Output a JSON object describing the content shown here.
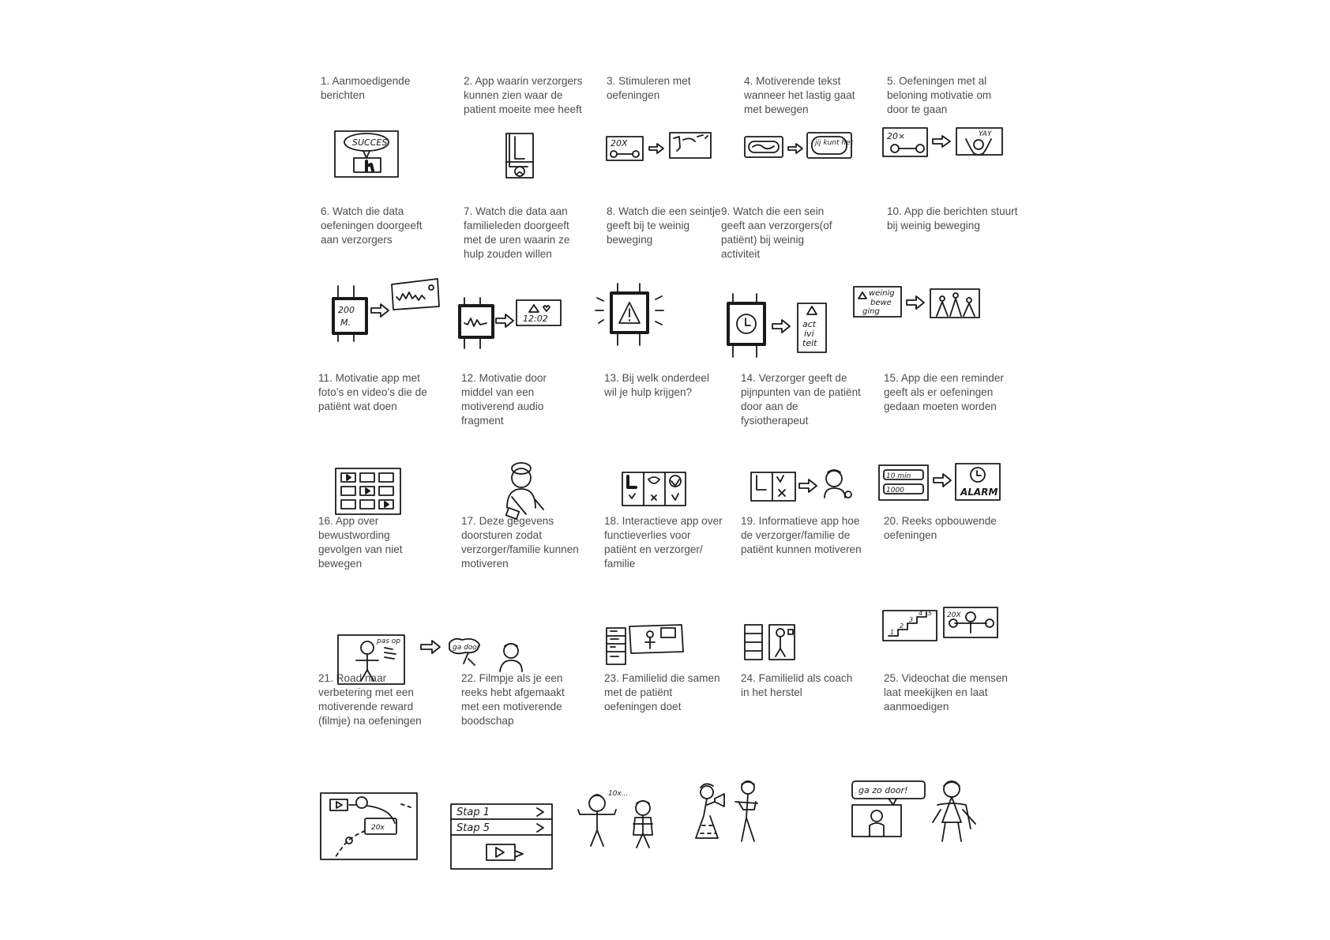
{
  "ideas": [
    {
      "number": "1",
      "caption": "1. Aanmoedigende berichten",
      "sketch_text": [
        "SUCCES"
      ]
    },
    {
      "number": "2",
      "caption": "2. App waarin verzorgers kunnen zien waar de patient moeite mee heeft",
      "sketch_text": []
    },
    {
      "number": "3",
      "caption": "3. Stimuleren met oefeningen",
      "sketch_text": [
        "20X"
      ]
    },
    {
      "number": "4",
      "caption": "4. Motiverende tekst wanneer het lastig gaat met bewegen",
      "sketch_text": [
        "jij kunt het"
      ]
    },
    {
      "number": "5",
      "caption": "5. Oefeningen met al beloning motivatie om door te gaan",
      "sketch_text": [
        "20×",
        "YAY"
      ]
    },
    {
      "number": "6",
      "caption": "6. Watch die data oefeningen doorgeeft aan verzorgers",
      "sketch_text": [
        "200",
        "M."
      ]
    },
    {
      "number": "7",
      "caption": "7. Watch die data aan familieleden doorgeeft met de uren waarin ze hulp zouden willen",
      "sketch_text": [
        "12:02"
      ]
    },
    {
      "number": "8",
      "caption": "8. Watch die een seintje geeft bij te weinig beweging",
      "sketch_text": []
    },
    {
      "number": "9",
      "caption": "9. Watch die een sein geeft aan verzorgers(of patiënt) bij weinig activiteit",
      "sketch_text": [
        "act",
        "ivi",
        "teit"
      ]
    },
    {
      "number": "10",
      "caption": "10. App die berichten stuurt bij weinig beweging",
      "sketch_text": [
        "weinig",
        "bewe",
        "ging"
      ]
    },
    {
      "number": "11",
      "caption": "11. Motivatie app met foto’s en video’s die de patiënt wat doen",
      "sketch_text": []
    },
    {
      "number": "12",
      "caption": "12. Motivatie door middel van een motiverend audio fragment",
      "sketch_text": []
    },
    {
      "number": "13",
      "caption": "13. Bij welk onderdeel wil je hulp krijgen?",
      "sketch_text": []
    },
    {
      "number": "14",
      "caption": "14. Verzorger geeft de pijnpunten van de patiënt door aan de fysiotherapeut",
      "sketch_text": []
    },
    {
      "number": "15",
      "caption": "15. App die een reminder geeft als er oefeningen gedaan moeten worden",
      "sketch_text": [
        "10 min",
        "1000",
        "ALARM"
      ]
    },
    {
      "number": "16",
      "caption": "16. App over bewustwording gevolgen van niet bewegen",
      "sketch_text": [
        "pas op"
      ]
    },
    {
      "number": "17",
      "caption": "17. Deze gegevens doorsturen zodat verzorger/familie kunnen motiveren",
      "sketch_text": [
        "ga door"
      ]
    },
    {
      "number": "18",
      "caption": "18. Interactieve app over functieverlies voor patiënt en verzorger/ familie",
      "sketch_text": []
    },
    {
      "number": "19",
      "caption": "19. Informatieve app hoe de verzorger/familie de patiënt kunnen motiveren",
      "sketch_text": []
    },
    {
      "number": "20",
      "caption": "20. Reeks opbouwende oefeningen",
      "sketch_text": [
        "1",
        "2",
        "3",
        "4",
        "5",
        "20X"
      ]
    },
    {
      "number": "21",
      "caption": "21. Road naar verbetering met een motiverende reward (filmje) na oefeningen",
      "sketch_text": [
        "20x"
      ]
    },
    {
      "number": "22",
      "caption": "22. Filmpje als je een reeks hebt afgemaakt met een motiverende boodschap",
      "sketch_text": [
        "Stap 1",
        "Stap 5"
      ]
    },
    {
      "number": "23",
      "caption": "23. Familielid die samen met de patiënt oefeningen doet",
      "sketch_text": [
        "10x..."
      ]
    },
    {
      "number": "24",
      "caption": "24. Familielid als coach in het herstel",
      "sketch_text": []
    },
    {
      "number": "25",
      "caption": "25. Videochat die mensen laat meekijken en laat aanmoedigen",
      "sketch_text": [
        "ga zo door!"
      ]
    }
  ],
  "style": {
    "caption_color": "#4d4d4d",
    "ink_color": "#1a1a1a",
    "background": "#ffffff"
  }
}
